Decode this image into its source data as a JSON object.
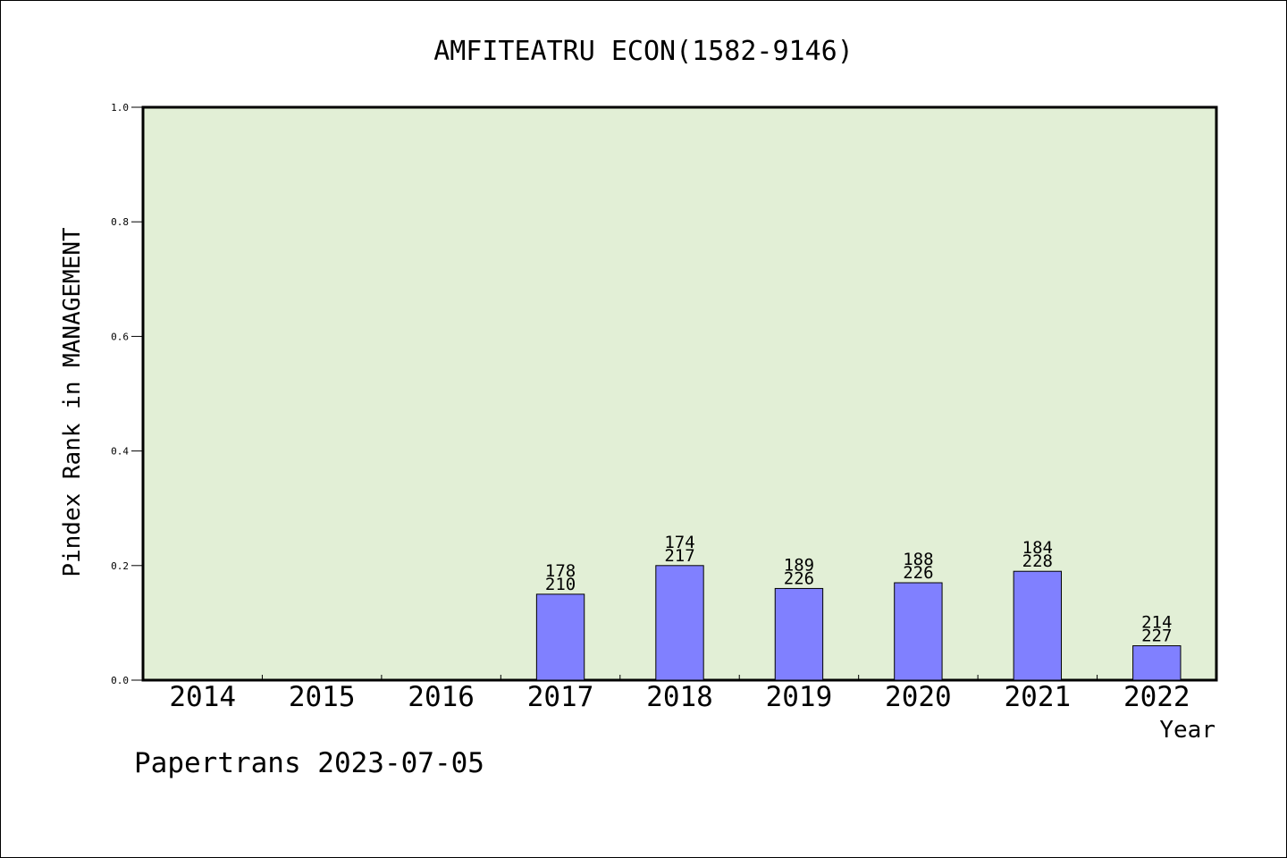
{
  "chart_data": {
    "type": "bar",
    "title": "AMFITEATRU ECON(1582-9146)",
    "xlabel": "Year",
    "ylabel": "Pindex Rank in MANAGEMENT",
    "ylim": [
      0,
      1.0
    ],
    "y_ticks": [
      "0.0",
      "0.2",
      "0.4",
      "0.6",
      "0.8",
      "1.0"
    ],
    "categories": [
      "2014",
      "2015",
      "2016",
      "2017",
      "2018",
      "2019",
      "2020",
      "2021",
      "2022"
    ],
    "values": [
      null,
      null,
      null,
      0.15,
      0.2,
      0.16,
      0.17,
      0.19,
      0.06
    ],
    "rank_labels": [
      null,
      null,
      null,
      "178",
      "174",
      "189",
      "188",
      "184",
      "214"
    ],
    "total_labels": [
      null,
      null,
      null,
      "210",
      "217",
      "226",
      "226",
      "228",
      "227"
    ],
    "grid": false,
    "colors": {
      "plot_background": "#e2efd6",
      "bar_fill": "#8080ff",
      "bar_stroke": "#000000"
    }
  },
  "footer": {
    "watermark": "Papertrans 2023-07-05"
  }
}
